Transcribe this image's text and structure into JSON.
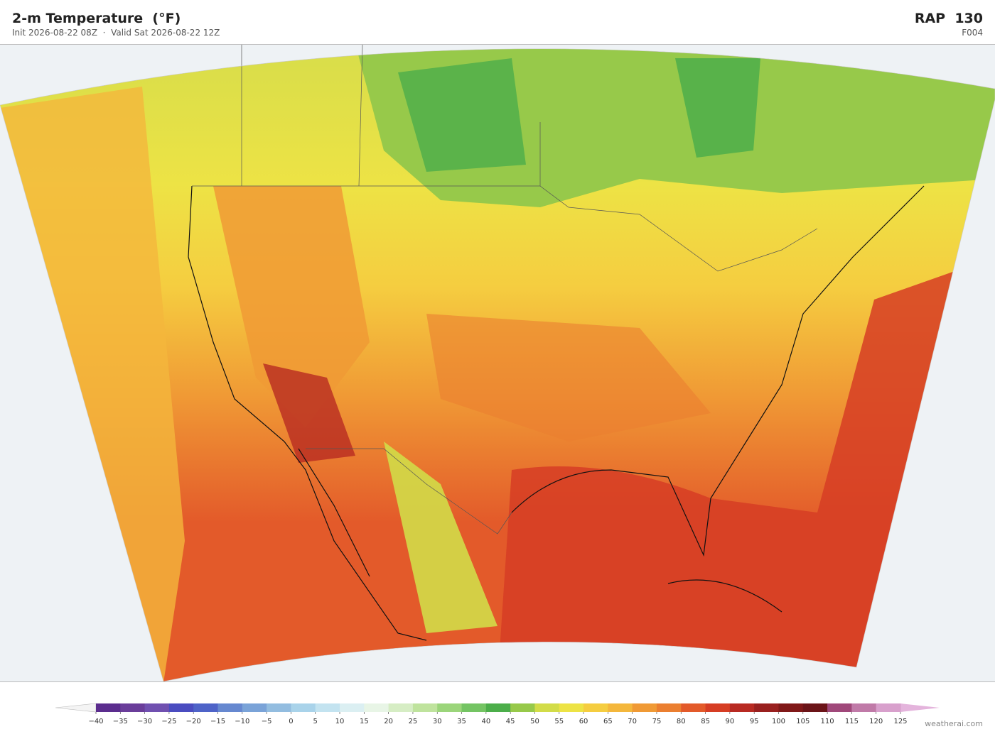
{
  "header": {
    "title": "2-m Temperature  (°F)",
    "subtitle": "Init 2026-08-22 08Z  ·  Valid Sat 2026-08-22 12Z",
    "model": "RAP  130",
    "forecast": "F004"
  },
  "colorbar": {
    "ticks": [
      {
        "value": -40,
        "label": "−40"
      },
      {
        "value": -35,
        "label": "−35"
      },
      {
        "value": -30,
        "label": "−30"
      },
      {
        "value": -25,
        "label": "−25"
      },
      {
        "value": -20,
        "label": "−20"
      },
      {
        "value": -15,
        "label": "−15"
      },
      {
        "value": -10,
        "label": "−10"
      },
      {
        "value": -5,
        "label": "−5"
      },
      0,
      5,
      10,
      15,
      20,
      25,
      30,
      35,
      40,
      45,
      50,
      55,
      60,
      65,
      70,
      75,
      80,
      85,
      90,
      95,
      100,
      105,
      110,
      115,
      120,
      125
    ],
    "colors": [
      "#5b2d8e",
      "#6a3d9a",
      "#7050b0",
      "#4a4cc0",
      "#4e63c8",
      "#6688d0",
      "#7aa3d8",
      "#93bde0",
      "#a9d3ea",
      "#c3e3f0",
      "#dbeff2",
      "#e8f5e6",
      "#d6edc4",
      "#bfe39d",
      "#9bd57a",
      "#74c463",
      "#4cae4a",
      "#97c94a",
      "#d2dc48",
      "#ede345",
      "#f5cd40",
      "#f4b73c",
      "#f09a35",
      "#eb7f30",
      "#e35a2a",
      "#d63d24",
      "#b82a22",
      "#99201f",
      "#801818",
      "#6b1418",
      "#a0487a",
      "#c07aa8",
      "#d8a0cc"
    ],
    "under_color": "#f4f4f4",
    "over_color": "#e4b4dc"
  },
  "watermark": "weatherai.com"
}
